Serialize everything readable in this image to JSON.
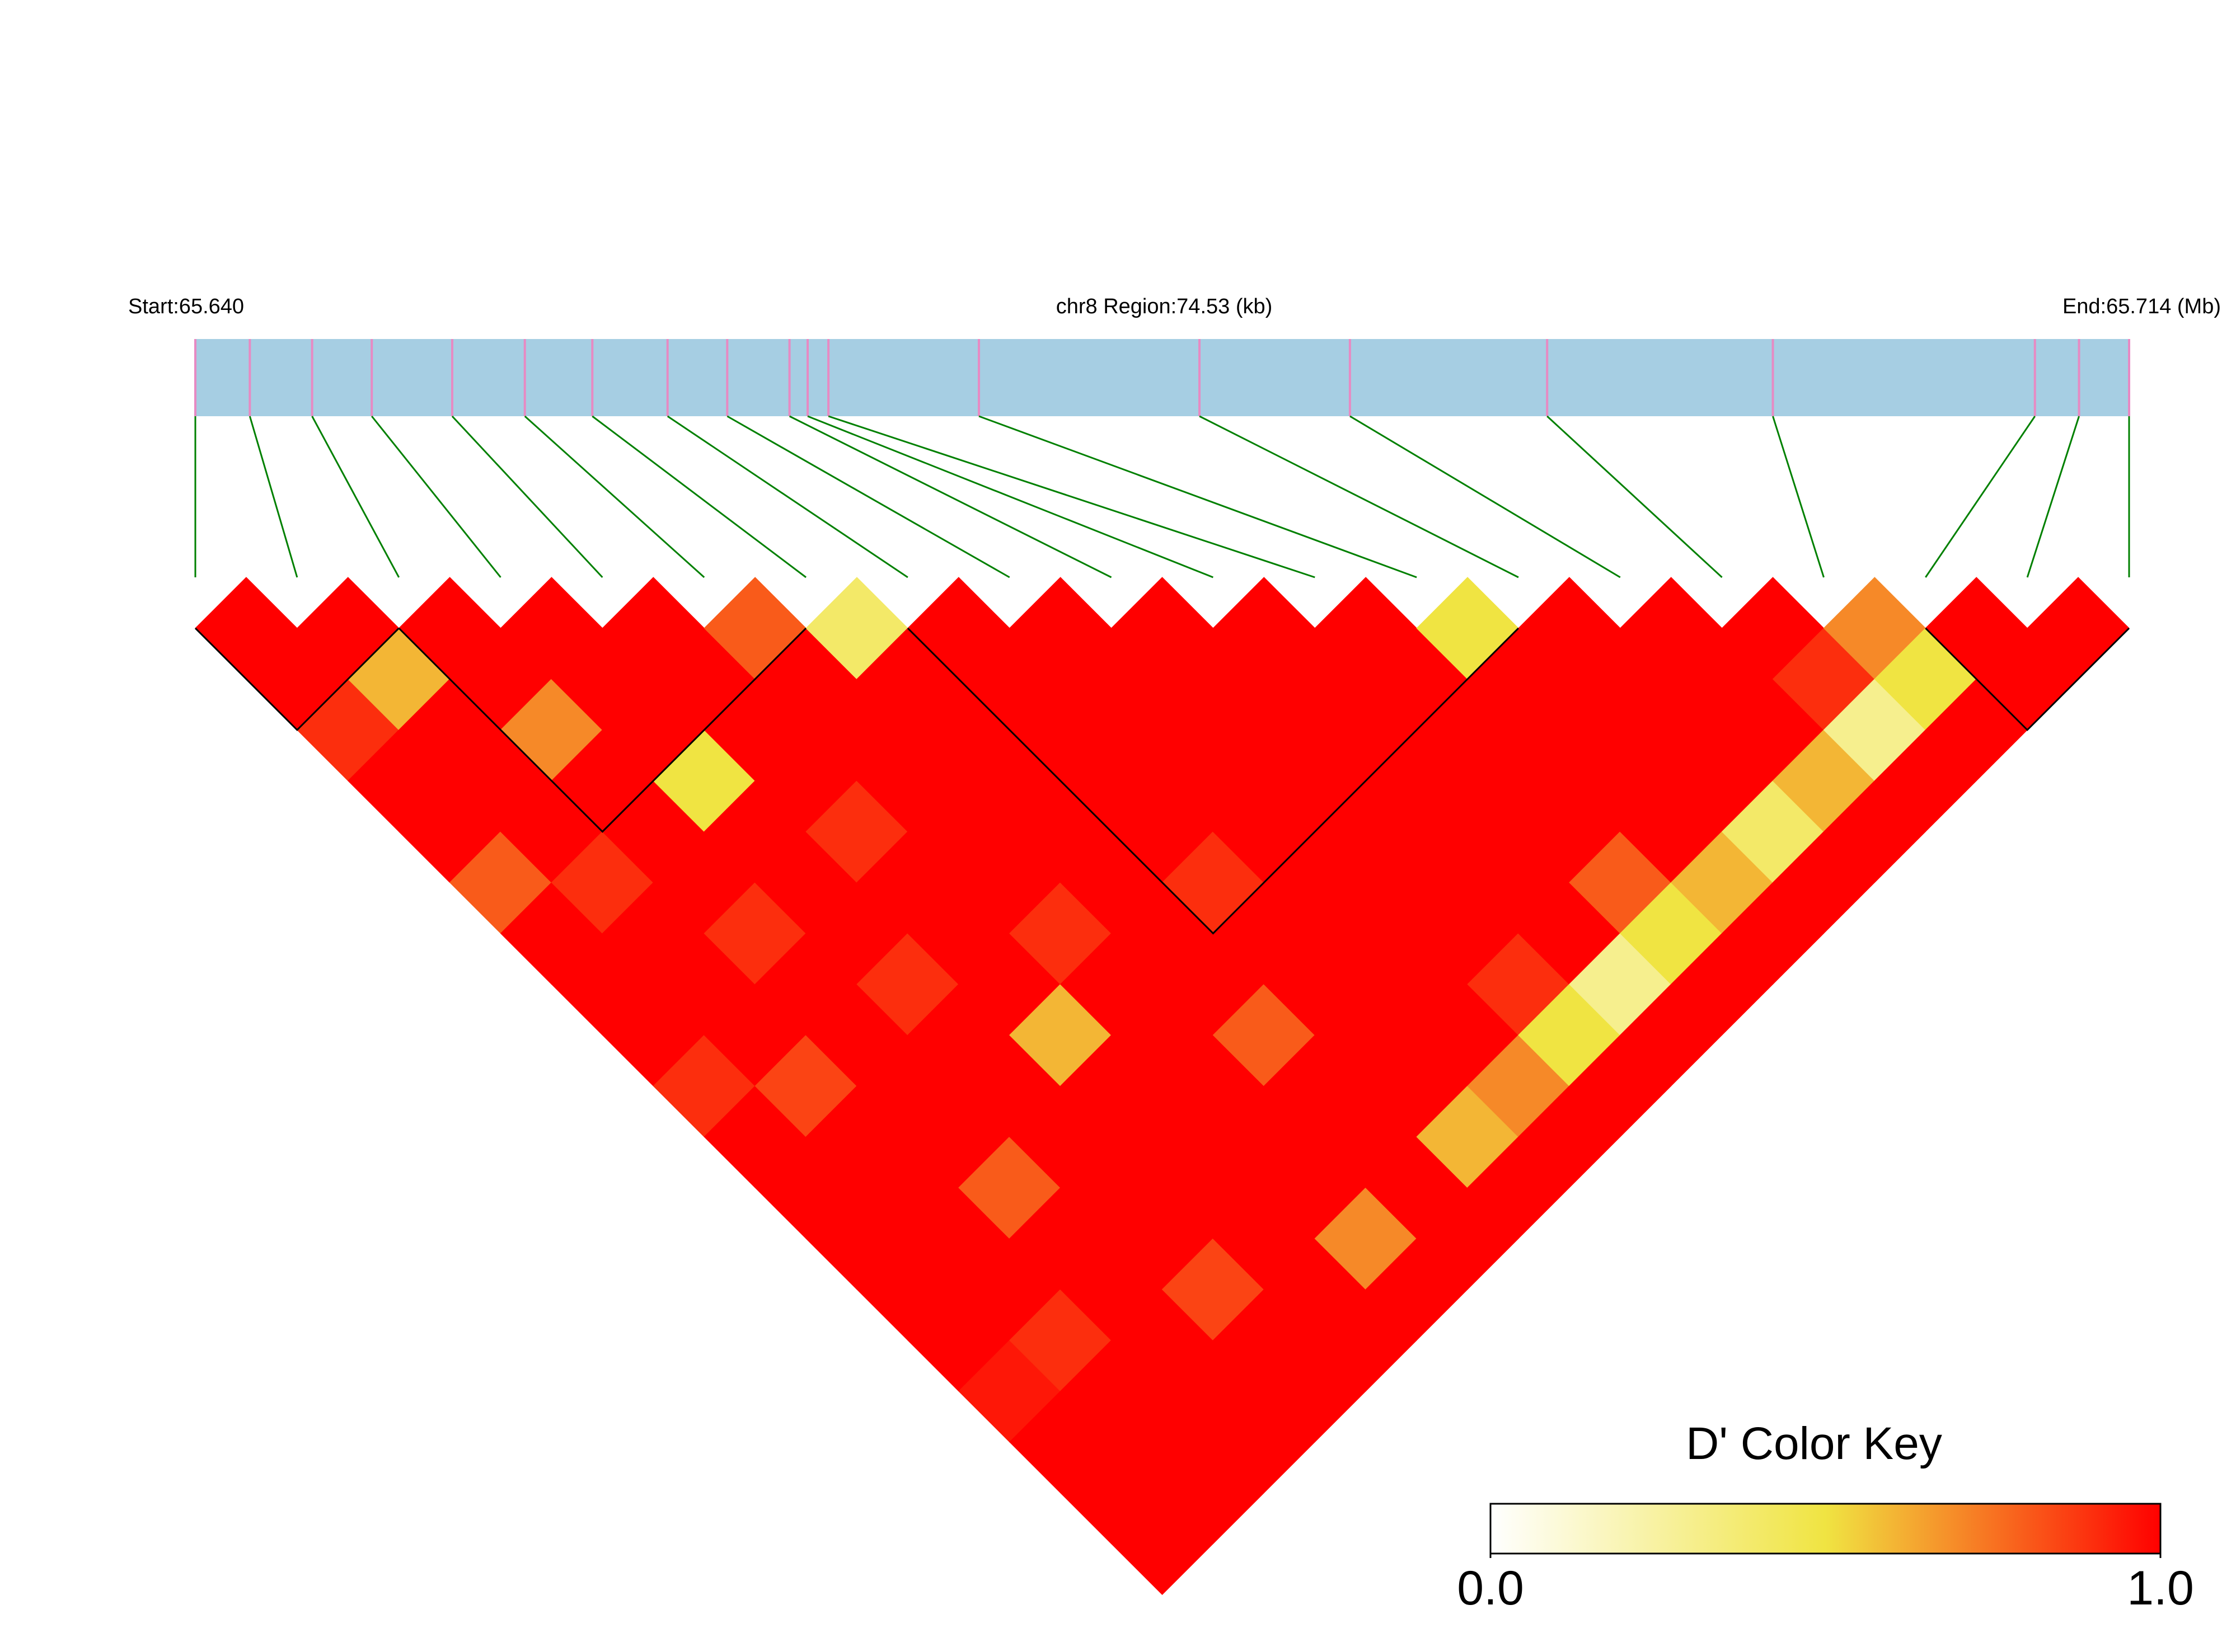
{
  "chart_data": {
    "type": "ld-heatmap",
    "start_label": "Start:65.640",
    "region_label": "chr8 Region:74.53 (kb)",
    "end_label": "End:65.714 (Mb)",
    "xlim": [
      0,
      74.53
    ],
    "positions": [
      0,
      2.1,
      4.5,
      6.8,
      9.9,
      12.7,
      15.3,
      18.2,
      20.5,
      22.9,
      23.6,
      24.4,
      30.2,
      38.7,
      44.5,
      52.1,
      60.8,
      70.9,
      72.6,
      74.53
    ],
    "track_color": "#a6cee3",
    "snp_color": "#e78ac3",
    "connector_color": "#008000",
    "dprime": [
      [
        1,
        1,
        0.9,
        1,
        1,
        0.8,
        1,
        1,
        1,
        0.9,
        1,
        1,
        1,
        1,
        1,
        0.95,
        1,
        1,
        1
      ],
      [
        1,
        0.6,
        1,
        1,
        1,
        0.9,
        1,
        1,
        1,
        0.85,
        1,
        1,
        1,
        1,
        0.9,
        1,
        1,
        1
      ],
      [
        1,
        1,
        0.7,
        1,
        1,
        1,
        0.9,
        1,
        1,
        1,
        1,
        0.8,
        1,
        1,
        1,
        1,
        1
      ],
      [
        1,
        1,
        1,
        0.5,
        1,
        1,
        1,
        0.9,
        1,
        1,
        1,
        1,
        1,
        0.85,
        1,
        1
      ],
      [
        1,
        1,
        1,
        1,
        0.9,
        1,
        1,
        1,
        0.6,
        1,
        1,
        1,
        1,
        1,
        1
      ],
      [
        0.8,
        1,
        1,
        1,
        1,
        1,
        0.9,
        1,
        1,
        1,
        1,
        1,
        0.7,
        1
      ],
      [
        0.4,
        1,
        1,
        1,
        1,
        1,
        1,
        1,
        0.8,
        1,
        1,
        1,
        1
      ],
      [
        1,
        1,
        1,
        1,
        1,
        0.9,
        1,
        1,
        1,
        1,
        0.6,
        1
      ],
      [
        1,
        1,
        1,
        1,
        1,
        1,
        1,
        1,
        1,
        0.7,
        1
      ],
      [
        1,
        1,
        1,
        1,
        1,
        1,
        1,
        0.9,
        0.5,
        1
      ],
      [
        1,
        1,
        1,
        1,
        1,
        1,
        1,
        0.3,
        1
      ],
      [
        1,
        1,
        1,
        1,
        1,
        0.8,
        0.5,
        1
      ],
      [
        0.5,
        1,
        1,
        1,
        1,
        0.6,
        1
      ],
      [
        1,
        1,
        1,
        1,
        0.4,
        1
      ],
      [
        1,
        1,
        1,
        0.6,
        1
      ],
      [
        1,
        0.9,
        0.3,
        1
      ],
      [
        0.7,
        0.5,
        1
      ],
      [
        1,
        1
      ],
      [
        1
      ]
    ],
    "blocks": [
      [
        0,
        2
      ],
      [
        2,
        6
      ],
      [
        7,
        13
      ],
      [
        17,
        19
      ]
    ],
    "colorbar": {
      "title": "D' Color Key",
      "colors": [
        "#ffffff",
        "#f0e442",
        "#ff0000"
      ],
      "ticks": [
        {
          "value": 0,
          "label": "0.0"
        },
        {
          "value": 1,
          "label": "1.0"
        }
      ]
    }
  }
}
